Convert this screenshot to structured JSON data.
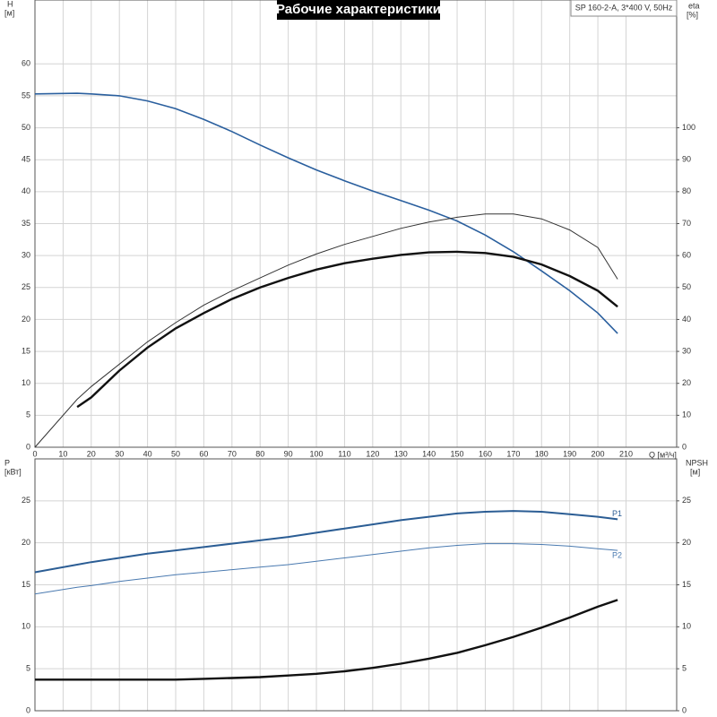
{
  "chart_data": [
    {
      "type": "line",
      "title": "Рабочие характеристики",
      "annotation": "SP 160-2-A, 3*400 V, 50Hz",
      "ylabel": "H",
      "ylabel_unit": "[м]",
      "y2label": "eta",
      "y2label_unit": "[%]",
      "xlabel": "Q [м³/ч]",
      "x": [
        0,
        15,
        20,
        30,
        40,
        50,
        60,
        70,
        80,
        90,
        100,
        110,
        120,
        130,
        140,
        150,
        160,
        170,
        180,
        190,
        200,
        207
      ],
      "xlim": [
        0,
        228
      ],
      "xticks": [
        0,
        10,
        20,
        30,
        40,
        50,
        60,
        70,
        80,
        90,
        100,
        110,
        120,
        130,
        140,
        150,
        160,
        170,
        180,
        190,
        200,
        210
      ],
      "ylim": [
        0,
        70
      ],
      "yticks": [
        0,
        5,
        10,
        15,
        20,
        25,
        30,
        35,
        40,
        45,
        50,
        55,
        60
      ],
      "y2lim": [
        0,
        140
      ],
      "y2ticks": [
        0,
        10,
        20,
        30,
        40,
        50,
        60,
        70,
        80,
        90,
        100
      ],
      "grid": true,
      "series": [
        {
          "color": "#2a5f9e",
          "width": 1.6,
          "values": [
            55.3,
            55.4,
            55.3,
            55,
            54.2,
            53,
            51.3,
            49.4,
            47.3,
            45.3,
            43.4,
            41.7,
            40.1,
            38.6,
            37.1,
            35.4,
            33.2,
            30.6,
            27.6,
            24.5,
            21,
            17.8
          ]
        },
        {
          "color": "#333333",
          "width": 1,
          "axis": "y2",
          "values": [
            0,
            15,
            19,
            26,
            33,
            39,
            44.5,
            49,
            53,
            57,
            60.5,
            63.5,
            66,
            68.5,
            70.5,
            72,
            73,
            73,
            71.5,
            68,
            62.5,
            52.6
          ]
        },
        {
          "color": "#111111",
          "width": 2.4,
          "axis": "y2",
          "values": [
            null,
            12.6,
            15.6,
            24,
            31.2,
            37.2,
            42,
            46.4,
            50,
            53,
            55.6,
            57.6,
            59,
            60.2,
            61,
            61.2,
            60.8,
            59.6,
            57.2,
            53.6,
            49,
            44
          ]
        }
      ]
    },
    {
      "type": "line",
      "ylabel": "P",
      "ylabel_unit": "[кВт]",
      "y2label": "NPSH",
      "y2label_unit": "[м]",
      "x": [
        0,
        15,
        20,
        30,
        40,
        50,
        60,
        70,
        80,
        90,
        100,
        110,
        120,
        130,
        140,
        150,
        160,
        170,
        180,
        190,
        200,
        207
      ],
      "xlim": [
        0,
        228
      ],
      "xticks": [
        0,
        10,
        20,
        30,
        40,
        50,
        60,
        70,
        80,
        90,
        100,
        110,
        120,
        130,
        140,
        150,
        160,
        170,
        180,
        190,
        200,
        210
      ],
      "xticklabels": false,
      "ylim": [
        0,
        30
      ],
      "yticks": [
        0,
        5,
        10,
        15,
        20,
        25
      ],
      "y2lim": [
        0,
        30
      ],
      "y2ticks": [
        0,
        5,
        10,
        15,
        20,
        25
      ],
      "grid": true,
      "series": [
        {
          "name": "P1",
          "color": "#2b5d94",
          "width": 2,
          "values": [
            16.5,
            17.4,
            17.7,
            18.2,
            18.7,
            19.1,
            19.5,
            19.9,
            20.3,
            20.7,
            21.2,
            21.7,
            22.2,
            22.7,
            23.1,
            23.5,
            23.7,
            23.8,
            23.7,
            23.4,
            23.1,
            22.8
          ]
        },
        {
          "name": "P2",
          "color": "#4a7ab0",
          "width": 1,
          "values": [
            13.9,
            14.7,
            14.9,
            15.4,
            15.8,
            16.2,
            16.5,
            16.8,
            17.1,
            17.4,
            17.8,
            18.2,
            18.6,
            19,
            19.4,
            19.7,
            19.9,
            19.9,
            19.8,
            19.6,
            19.3,
            19.1
          ]
        },
        {
          "color": "#111111",
          "width": 2.4,
          "axis": "y2",
          "values": [
            3.7,
            3.7,
            3.7,
            3.7,
            3.7,
            3.7,
            3.8,
            3.9,
            4.0,
            4.2,
            4.4,
            4.7,
            5.1,
            5.6,
            6.2,
            6.9,
            7.8,
            8.8,
            9.9,
            11.1,
            12.4,
            13.2
          ]
        }
      ]
    }
  ]
}
